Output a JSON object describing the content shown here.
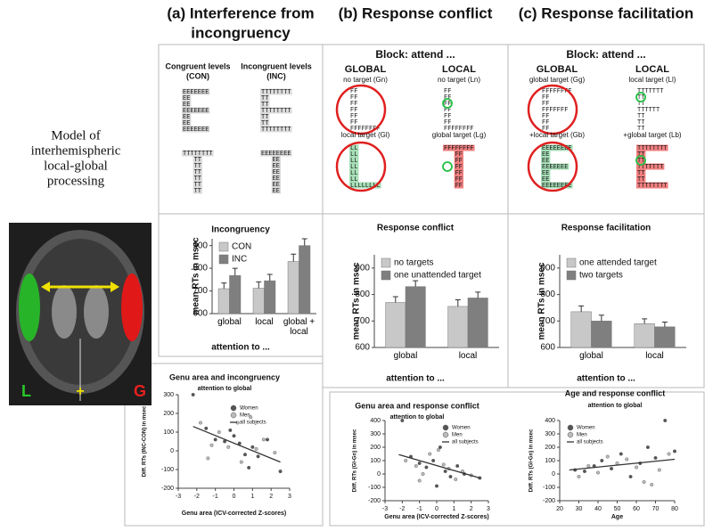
{
  "model_label": [
    "Model of",
    "interhemispheric",
    "local-global",
    "processing"
  ],
  "brain": {
    "left": "L",
    "center": "+",
    "right": "G"
  },
  "panels": [
    {
      "heading": [
        "(a) Interference from",
        "incongruency"
      ],
      "columns": [
        {
          "label": [
            "Congruent levels",
            "(CON)"
          ],
          "stimuli": [
            {
              "rows": [
                "EEEEEEE",
                "EE",
                "EE",
                "EEEEEEE",
                "EE",
                "EE",
                "EEEEEEE"
              ]
            },
            {
              "rows": [
                "TTTTTTTT",
                "   TT",
                "   TT",
                "   TT",
                "   TT",
                "   TT",
                "   TT"
              ]
            }
          ]
        },
        {
          "label": [
            "Incongruent levels",
            "(INC)"
          ],
          "stimuli": [
            {
              "rows": [
                "TTTTTTTT",
                "TT",
                "TT",
                "TTTTTTTT",
                "TT",
                "TT",
                "TTTTTTTT"
              ]
            },
            {
              "rows": [
                "EEEEEEEE",
                "   EE",
                "   EE",
                "   EE",
                "   EE",
                "   EE",
                "   EE"
              ]
            }
          ]
        }
      ]
    },
    {
      "heading": [
        "(b) Response conflict"
      ],
      "block": "Block:  attend ...",
      "columns": [
        {
          "label": [
            "GLOBAL"
          ],
          "stimuli": [
            {
              "caption": "no target (Gn)",
              "rows": [
                "FF",
                "FF",
                "FF",
                "FF",
                "FF",
                "FF",
                "FFFFFFFF"
              ]
            },
            {
              "caption": "local target (Gl)",
              "rows": [
                "LL",
                "LL",
                "LL",
                "LL",
                "LL",
                "LL",
                "LLLLLLLL"
              ]
            }
          ]
        },
        {
          "label": [
            "LOCAL"
          ],
          "stimuli": [
            {
              "caption": "no target (Ln)",
              "rows": [
                "FF",
                "FF",
                "FF",
                "FF",
                "FF",
                "FF",
                "FFFFFFFF"
              ]
            },
            {
              "caption": "global target (Lg)",
              "rows": [
                "FFFFFFFF",
                "   FF",
                "   FF",
                "   FF",
                "   FF",
                "   FF",
                "   FF"
              ]
            }
          ]
        }
      ]
    },
    {
      "heading": [
        "(c) Response facilitation"
      ],
      "block": "Block:  attend ...",
      "columns": [
        {
          "label": [
            "GLOBAL"
          ],
          "stimuli": [
            {
              "caption": "global target (Gg)",
              "rows": [
                "FFFFFFFF",
                "FF",
                "FF",
                "FFFFFFF",
                "FF",
                "FF",
                "FF"
              ]
            },
            {
              "caption": "+local target (Gb)",
              "rows": [
                "EEEEEEEE",
                "EE",
                "EE",
                "EEEEEEE",
                "EE",
                "EE",
                "EEEEEEEE"
              ]
            }
          ]
        },
        {
          "label": [
            "LOCAL"
          ],
          "stimuli": [
            {
              "caption": "local target (Ll)",
              "rows": [
                "TTTTTTT",
                "TT",
                "TT",
                "TTTTTT",
                "TT",
                "TT",
                "TT"
              ]
            },
            {
              "caption": "+global target (Lb)",
              "rows": [
                "TTTTTTTT",
                "TT",
                "TT",
                "TTTTTTT",
                "TT",
                "TT",
                "TTTTTTTT"
              ]
            }
          ]
        }
      ]
    }
  ],
  "chart_data": [
    {
      "type": "bar",
      "title": "Incongruency",
      "y_label": "mean RTs in msec",
      "x_label": "attention to ...",
      "categories": [
        "global",
        "local",
        "global + local"
      ],
      "series": [
        {
          "name": "CON",
          "color": "#c8c8c8",
          "values": [
            710,
            712,
            830
          ],
          "errors": [
            25,
            28,
            32
          ]
        },
        {
          "name": "INC",
          "color": "#7f7f7f",
          "values": [
            768,
            745,
            900
          ],
          "errors": [
            32,
            28,
            30
          ]
        }
      ],
      "ylim": [
        600,
        930
      ],
      "yticks": [
        600,
        700,
        800,
        900
      ]
    },
    {
      "type": "bar",
      "title": "Response conflict",
      "y_label": "mean RTs in msec",
      "x_label": "attention to ...",
      "categories": [
        "global",
        "local"
      ],
      "series": [
        {
          "name": "no targets",
          "color": "#c8c8c8",
          "values": [
            770,
            755
          ],
          "errors": [
            22,
            25
          ]
        },
        {
          "name": "one unattended target",
          "color": "#7f7f7f",
          "values": [
            830,
            787
          ],
          "errors": [
            22,
            22
          ]
        }
      ],
      "ylim": [
        600,
        950
      ],
      "yticks": [
        600,
        700,
        800,
        900
      ]
    },
    {
      "type": "bar",
      "title": "Response facilitation",
      "y_label": "mean RTs in msec",
      "x_label": "attention to ...",
      "categories": [
        "global",
        "local"
      ],
      "series": [
        {
          "name": "one attended target",
          "color": "#c8c8c8",
          "values": [
            735,
            690
          ],
          "errors": [
            22,
            18
          ]
        },
        {
          "name": "two targets",
          "color": "#7f7f7f",
          "values": [
            700,
            678
          ],
          "errors": [
            22,
            18
          ]
        }
      ],
      "ylim": [
        600,
        950
      ],
      "yticks": [
        600,
        700,
        800,
        900
      ]
    },
    {
      "type": "scatter",
      "title": "Genu area and incongruency",
      "subtitle": "attention to global",
      "y_label": "Diff. RTs (INC-CON) in msec",
      "x_label": "Genu area (ICV-corrected Z-scores)",
      "series": [
        {
          "name": "Women",
          "color": "#555555",
          "x": [
            -2.2,
            -1.5,
            -1,
            -0.5,
            0,
            0.3,
            0.6,
            1,
            1.3,
            1.8,
            2.5,
            -0.2,
            0.8
          ],
          "values": [
            300,
            120,
            60,
            50,
            80,
            40,
            -20,
            20,
            -30,
            60,
            -110,
            110,
            -90
          ]
        },
        {
          "name": "Men",
          "color": "#bbbbbb",
          "x": [
            -1.8,
            -1.2,
            -0.8,
            -0.3,
            0.2,
            0.5,
            0.9,
            1.2,
            1.6,
            2.2,
            -1.4,
            0.4
          ],
          "values": [
            150,
            30,
            100,
            20,
            150,
            230,
            180,
            10,
            60,
            -10,
            -40,
            -60
          ]
        },
        {
          "name": "all subjects",
          "color": "#333333",
          "x": [
            -2.2,
            2.5
          ],
          "values": [
            130,
            -60
          ]
        }
      ],
      "xlim": [
        -3,
        3
      ],
      "xticks": [
        -3,
        -2,
        -1,
        0,
        1,
        2,
        3
      ],
      "ylim": [
        -200,
        300
      ],
      "yticks": [
        -200,
        -100,
        0,
        100,
        200,
        300
      ]
    },
    {
      "type": "scatter",
      "title": "Genu area and response conflict",
      "subtitle": "attention to global",
      "y_label": "Diff. RTs (Gl-Gn) in msec",
      "x_label": "Genu area (ICV-corrected Z-scores)",
      "series": [
        {
          "name": "Women",
          "color": "#555555",
          "x": [
            -2,
            -1.5,
            -1,
            -0.6,
            -0.2,
            0.2,
            0.5,
            0.8,
            1.2,
            1.6,
            2.5,
            0
          ],
          "values": [
            400,
            130,
            80,
            50,
            100,
            200,
            20,
            -20,
            60,
            0,
            -30,
            -90
          ]
        },
        {
          "name": "Men",
          "color": "#bbbbbb",
          "x": [
            -1.8,
            -1.2,
            -0.8,
            -0.4,
            0.1,
            0.4,
            0.7,
            1.1,
            1.5,
            2,
            -1
          ],
          "values": [
            100,
            60,
            0,
            150,
            180,
            70,
            40,
            -40,
            20,
            -10,
            -50
          ]
        },
        {
          "name": "all subjects",
          "color": "#333333",
          "x": [
            -2.2,
            2.5
          ],
          "values": [
            145,
            -30
          ]
        }
      ],
      "xlim": [
        -3,
        3
      ],
      "xticks": [
        -3,
        -2,
        -1,
        0,
        1,
        2,
        3
      ],
      "ylim": [
        -200,
        400
      ],
      "yticks": [
        -200,
        -100,
        0,
        100,
        200,
        300,
        400
      ]
    },
    {
      "type": "scatter",
      "title": "Age and response conflict",
      "subtitle": "attention to global",
      "y_label": "Diff. RTs (Gl-Gn) in msec",
      "x_label": "Age",
      "series": [
        {
          "name": "Women",
          "color": "#555555",
          "x": [
            28,
            33,
            38,
            42,
            47,
            52,
            57,
            62,
            66,
            70,
            75,
            80
          ],
          "values": [
            30,
            20,
            60,
            100,
            40,
            150,
            -20,
            80,
            200,
            120,
            400,
            170
          ]
        },
        {
          "name": "Men",
          "color": "#bbbbbb",
          "x": [
            30,
            35,
            40,
            45,
            50,
            55,
            60,
            64,
            68,
            72,
            77
          ],
          "values": [
            -20,
            60,
            10,
            130,
            80,
            110,
            50,
            -60,
            -80,
            30,
            150
          ]
        },
        {
          "name": "all subjects",
          "color": "#333333",
          "x": [
            25,
            80
          ],
          "values": [
            30,
            110
          ]
        }
      ],
      "xlim": [
        20,
        80
      ],
      "xticks": [
        20,
        30,
        40,
        50,
        60,
        70,
        80
      ],
      "ylim": [
        -200,
        400
      ],
      "yticks": [
        -200,
        -100,
        0,
        100,
        200,
        300,
        400
      ]
    }
  ]
}
